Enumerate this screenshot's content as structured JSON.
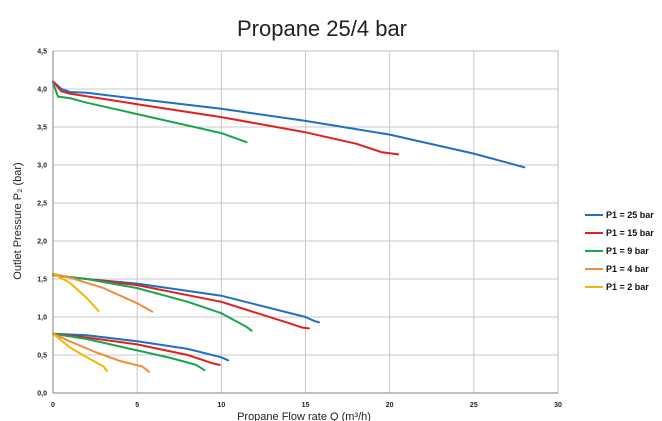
{
  "chart_data": {
    "type": "line",
    "title": "Propane 25/4 bar",
    "xlabel": "Propane Flow rate Q (m³/h)",
    "ylabel": "Outlet Pressure P₂ (bar)",
    "xlim": [
      0,
      30
    ],
    "ylim": [
      0,
      4.5
    ],
    "x_ticks": [
      "0",
      "5",
      "10",
      "15",
      "20",
      "25",
      "30"
    ],
    "y_ticks": [
      "0,0",
      "0,5",
      "1,0",
      "1,5",
      "2,0",
      "2,5",
      "3,0",
      "3,5",
      "4,0",
      "4,5"
    ],
    "grid": true,
    "legend_position": "right",
    "series": [
      {
        "name": "P1 = 25 bar",
        "color": "#1f6fc6",
        "curves": [
          [
            [
              0,
              4.1
            ],
            [
              0.5,
              4.0
            ],
            [
              1,
              3.96
            ],
            [
              2,
              3.95
            ],
            [
              5,
              3.87
            ],
            [
              10,
              3.74
            ],
            [
              15,
              3.58
            ],
            [
              20,
              3.4
            ],
            [
              25,
              3.15
            ],
            [
              28,
              2.97
            ]
          ],
          [
            [
              0,
              1.55
            ],
            [
              2,
              1.5
            ],
            [
              5,
              1.44
            ],
            [
              10,
              1.28
            ],
            [
              15,
              1.0
            ],
            [
              15.5,
              0.95
            ],
            [
              15.8,
              0.93
            ]
          ],
          [
            [
              0,
              0.78
            ],
            [
              2,
              0.76
            ],
            [
              5,
              0.68
            ],
            [
              8,
              0.58
            ],
            [
              10,
              0.47
            ],
            [
              10.4,
              0.43
            ]
          ]
        ]
      },
      {
        "name": "P1 = 15 bar",
        "color": "#e02020",
        "curves": [
          [
            [
              0,
              4.1
            ],
            [
              0.5,
              3.97
            ],
            [
              1,
              3.94
            ],
            [
              5,
              3.8
            ],
            [
              10,
              3.63
            ],
            [
              15,
              3.43
            ],
            [
              18,
              3.28
            ],
            [
              19.5,
              3.17
            ],
            [
              20.5,
              3.14
            ]
          ],
          [
            [
              0,
              1.55
            ],
            [
              2,
              1.5
            ],
            [
              5,
              1.42
            ],
            [
              10,
              1.2
            ],
            [
              14,
              0.92
            ],
            [
              14.8,
              0.86
            ],
            [
              15.2,
              0.85
            ]
          ],
          [
            [
              0,
              0.78
            ],
            [
              2,
              0.73
            ],
            [
              5,
              0.64
            ],
            [
              8,
              0.5
            ],
            [
              9.5,
              0.39
            ],
            [
              9.9,
              0.37
            ]
          ]
        ]
      },
      {
        "name": "P1 = 9 bar",
        "color": "#1aa64a",
        "curves": [
          [
            [
              0,
              4.08
            ],
            [
              0.3,
              3.9
            ],
            [
              1,
              3.88
            ],
            [
              2,
              3.82
            ],
            [
              5,
              3.67
            ],
            [
              8,
              3.52
            ],
            [
              10,
              3.42
            ],
            [
              11,
              3.34
            ],
            [
              11.5,
              3.3
            ]
          ],
          [
            [
              0,
              1.55
            ],
            [
              2,
              1.5
            ],
            [
              5,
              1.38
            ],
            [
              8,
              1.2
            ],
            [
              10,
              1.05
            ],
            [
              11.5,
              0.87
            ],
            [
              11.8,
              0.82
            ]
          ],
          [
            [
              0,
              0.78
            ],
            [
              2,
              0.71
            ],
            [
              5,
              0.56
            ],
            [
              7,
              0.46
            ],
            [
              8.5,
              0.37
            ],
            [
              9,
              0.3
            ]
          ]
        ]
      },
      {
        "name": "P1 = 4 bar",
        "color": "#f08c3c",
        "curves": [
          [
            [
              0,
              1.57
            ],
            [
              1,
              1.52
            ],
            [
              3,
              1.38
            ],
            [
              5,
              1.18
            ],
            [
              5.9,
              1.07
            ]
          ],
          [
            [
              0,
              0.78
            ],
            [
              1,
              0.68
            ],
            [
              2.5,
              0.54
            ],
            [
              4,
              0.42
            ],
            [
              5.3,
              0.35
            ],
            [
              5.7,
              0.28
            ]
          ]
        ]
      },
      {
        "name": "P1 = 2 bar",
        "color": "#f5b800",
        "curves": [
          [
            [
              0,
              1.57
            ],
            [
              1,
              1.45
            ],
            [
              2,
              1.25
            ],
            [
              2.7,
              1.08
            ]
          ],
          [
            [
              0,
              0.78
            ],
            [
              1,
              0.6
            ],
            [
              2,
              0.47
            ],
            [
              3,
              0.35
            ],
            [
              3.2,
              0.29
            ]
          ]
        ]
      }
    ]
  }
}
